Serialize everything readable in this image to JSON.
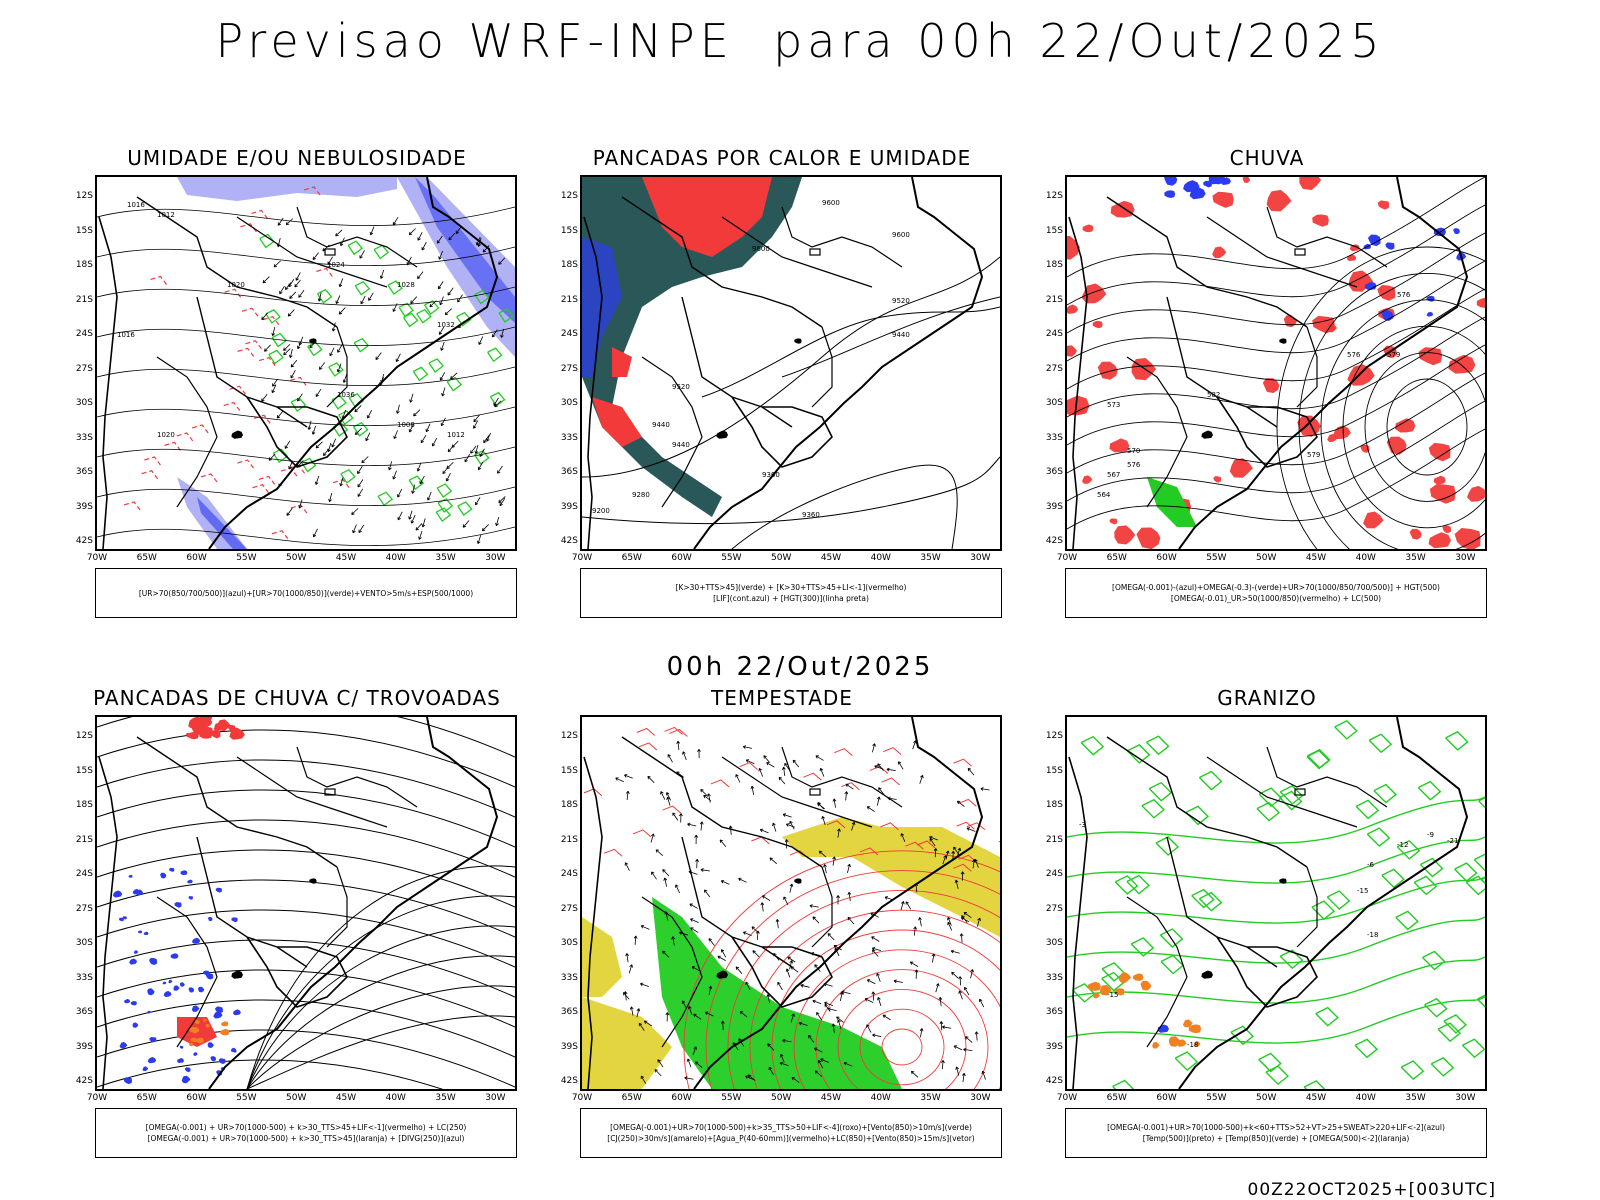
{
  "title": "Previsao WRF-INPE  para 00h 22/Out/2025",
  "mid_title": "00h 22/Out/2025",
  "footer": "00Z22OCT2025+[003UTC]",
  "axes": {
    "lat_labels": [
      "12S",
      "15S",
      "18S",
      "21S",
      "24S",
      "27S",
      "30S",
      "33S",
      "36S",
      "39S",
      "42S"
    ],
    "lon_labels": [
      "70W",
      "65W",
      "60W",
      "55W",
      "50W",
      "45W",
      "40W",
      "35W",
      "30W"
    ]
  },
  "colors": {
    "blue": "#2b3cf0",
    "lavender": "#a8a8f4",
    "green": "#22cc22",
    "red": "#f23a3a",
    "dark_teal": "#1f4f4f",
    "yellow": "#e0d02a",
    "orange": "#f08020",
    "black": "#000000"
  },
  "panels": [
    {
      "title": "UMIDADE E/OU NEBULOSIDADE",
      "legend": [
        "[UR>70(850/700/500)](azul)+[UR>70(1000/850)](verde)+VENTO>5m/s+ESP(500/1000)"
      ],
      "contour_labels": [
        "1016",
        "1012",
        "1020",
        "1024",
        "1028",
        "1032",
        "1036",
        "1008",
        "1012",
        "1016",
        "1020"
      ]
    },
    {
      "title": "PANCADAS POR CALOR E UMIDADE",
      "legend": [
        "[K>30+TTS>45](verde) + [K>30+TTS>45+LI<-1](vermelho)",
        "[LIF](cont.azul) + [HGT(300)](linha preta)"
      ],
      "contour_labels": [
        "9600",
        "9600",
        "9600",
        "9520",
        "9440",
        "9520",
        "9440",
        "9440",
        "9360",
        "9280",
        "9200",
        "9360"
      ]
    },
    {
      "title": "CHUVA",
      "legend": [
        "[OMEGA(-0.001)-(azul)+OMEGA(-0.3)-(verde)+UR>70(1000/850/700/500)] + HGT(500)",
        "[OMEGA(-0.01)_UR>50(1000/850)(vermelho) + LC(500)"
      ],
      "contour_labels": [
        "582",
        "579",
        "576",
        "576",
        "573",
        "570",
        "567",
        "564",
        "576",
        "579"
      ]
    },
    {
      "title": "PANCADAS DE CHUVA C/ TROVOADAS",
      "legend": [
        "[OMEGA(-0.001) + UR>70(1000-500) + k>30_TTS>45+LIF<-1](vermelho) + LC(250)",
        "[OMEGA(-0.001) + UR>70(1000-500) + k>30_TTS>45](laranja) + [DIVG(250)](azul)"
      ],
      "contour_labels": []
    },
    {
      "title": "TEMPESTADE",
      "legend": [
        "[OMEGA(-0.001)+UR>70(1000-500)+k>35_TTS>50+LIF<-4](roxo)+[Vento(850)>10m/s](verde)",
        "[CJ(250)>30m/s](amarelo)+[Agua_P(40-60mm)](vermelho)+LC(850)+[Vento(850)>15m/s](vetor)"
      ],
      "contour_labels": []
    },
    {
      "title": "GRANIZO",
      "legend": [
        "[OMEGA(-0.001)+UR>70(1000-500)+k<60+TTS>52+VT>25+SWEAT>220+LIF<-2](azul)",
        "[Temp(500)](preto) + [Temp(850)](verde) + [OMEGA(500)<-2](laranja)"
      ],
      "contour_labels": [
        "-21",
        "-3",
        "-6",
        "-9",
        "-12",
        "-15",
        "-18",
        "-15",
        "-18"
      ]
    }
  ]
}
